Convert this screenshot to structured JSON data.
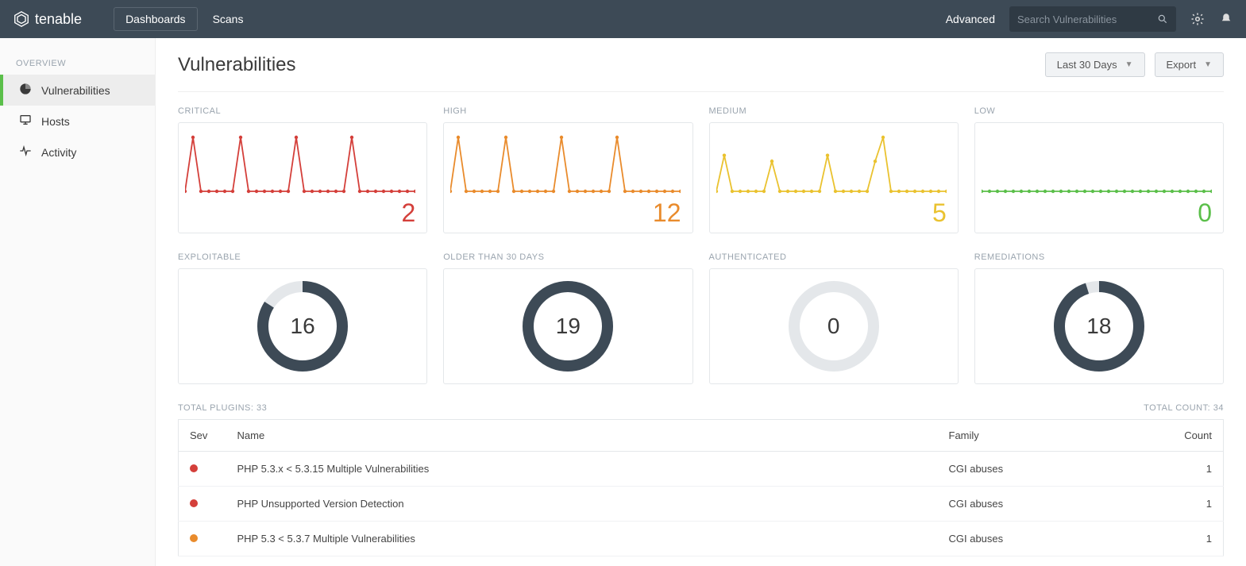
{
  "brand": "tenable",
  "nav": {
    "dashboards": "Dashboards",
    "scans": "Scans",
    "advanced": "Advanced",
    "search_placeholder": "Search Vulnerabilities"
  },
  "sidebar": {
    "section": "Overview",
    "items": [
      {
        "label": "Vulnerabilities",
        "active": true,
        "icon": "pie"
      },
      {
        "label": "Hosts",
        "active": false,
        "icon": "monitor"
      },
      {
        "label": "Activity",
        "active": false,
        "icon": "pulse"
      }
    ]
  },
  "page": {
    "title": "Vulnerabilities",
    "range_label": "Last 30 Days",
    "export_label": "Export"
  },
  "severity_charts": {
    "colors": {
      "critical": "#d43f3a",
      "high": "#e98b2c",
      "medium": "#eac22f",
      "low": "#5bbf4a"
    },
    "value_fontsize": 32,
    "card_border": "#e4e7ea",
    "items": [
      {
        "label": "Critical",
        "key": "critical",
        "value": 2,
        "series": [
          0,
          9,
          0,
          0,
          0,
          0,
          0,
          9,
          0,
          0,
          0,
          0,
          0,
          0,
          9,
          0,
          0,
          0,
          0,
          0,
          0,
          9,
          0,
          0,
          0,
          0,
          0,
          0,
          0,
          0
        ]
      },
      {
        "label": "High",
        "key": "high",
        "value": 12,
        "series": [
          0,
          7,
          0,
          0,
          0,
          0,
          0,
          7,
          0,
          0,
          0,
          0,
          0,
          0,
          7,
          0,
          0,
          0,
          0,
          0,
          0,
          7,
          0,
          0,
          0,
          0,
          0,
          0,
          0,
          0
        ]
      },
      {
        "label": "Medium",
        "key": "medium",
        "value": 5,
        "series": [
          0,
          6,
          0,
          0,
          0,
          0,
          0,
          5,
          0,
          0,
          0,
          0,
          0,
          0,
          6,
          0,
          0,
          0,
          0,
          0,
          5,
          9,
          0,
          0,
          0,
          0,
          0,
          0,
          0,
          0
        ]
      },
      {
        "label": "Low",
        "key": "low",
        "value": 0,
        "series": [
          0,
          0,
          0,
          0,
          0,
          0,
          0,
          0,
          0,
          0,
          0,
          0,
          0,
          0,
          0,
          0,
          0,
          0,
          0,
          0,
          0,
          0,
          0,
          0,
          0,
          0,
          0,
          0,
          0,
          0
        ]
      }
    ]
  },
  "donuts": {
    "ring_color": "#3d4a56",
    "ring_bg": "#e4e7ea",
    "items": [
      {
        "label": "Exploitable",
        "value": 16,
        "pct": 84
      },
      {
        "label": "Older Than 30 Days",
        "value": 19,
        "pct": 100
      },
      {
        "label": "Authenticated",
        "value": 0,
        "pct": 0
      },
      {
        "label": "Remediations",
        "value": 18,
        "pct": 95
      }
    ]
  },
  "table": {
    "total_plugins_label": "Total Plugins:",
    "total_plugins": 33,
    "total_count_label": "Total Count:",
    "total_count": 34,
    "columns": {
      "sev": "Sev",
      "name": "Name",
      "family": "Family",
      "count": "Count"
    },
    "rows": [
      {
        "sev_color": "#d43f3a",
        "name": "PHP 5.3.x < 5.3.15 Multiple Vulnerabilities",
        "family": "CGI abuses",
        "count": 1
      },
      {
        "sev_color": "#d43f3a",
        "name": "PHP Unsupported Version Detection",
        "family": "CGI abuses",
        "count": 1
      },
      {
        "sev_color": "#e98b2c",
        "name": "PHP 5.3 < 5.3.7 Multiple Vulnerabilities",
        "family": "CGI abuses",
        "count": 1
      }
    ]
  }
}
